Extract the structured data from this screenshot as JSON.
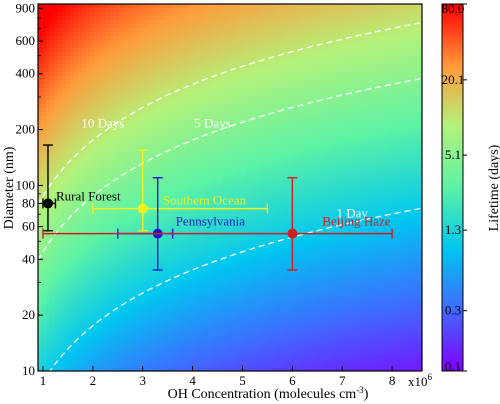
{
  "chart_data": {
    "type": "scatter",
    "title": "",
    "xlabel": "OH Concentration (molecules cm",
    "xlabel_sup": "-3",
    "xlabel_end": ")",
    "ylabel": "Diameter (nm)",
    "x_multiplier_label": "x10",
    "x_multiplier_exp": "6",
    "xlim": [
      0.9,
      8.6
    ],
    "ylim": [
      10,
      950
    ],
    "y_scale": "log",
    "x_ticks": [
      1,
      2,
      3,
      4,
      5,
      6,
      7,
      8
    ],
    "x_tick_labels": [
      "1",
      "2",
      "3",
      "4",
      "5",
      "6",
      "7",
      "8"
    ],
    "y_ticks": [
      10,
      20,
      40,
      60,
      80,
      100,
      200,
      400,
      600,
      900
    ],
    "y_tick_labels": [
      "10",
      "20",
      "40",
      "60",
      "80",
      "100",
      "200",
      "400",
      "600",
      "900"
    ],
    "colorbar": {
      "label": "Lifetime (days)",
      "scale": "log",
      "range": [
        0.1,
        80.0
      ],
      "tick_labels": [
        "80.0",
        "20.1",
        "5.1",
        "1.3",
        "0.3",
        "0.1"
      ],
      "tick_values": [
        80.0,
        20.1,
        5.1,
        1.3,
        0.3,
        0.1
      ],
      "colormap": "rainbow"
    },
    "contours": [
      {
        "label": "10 Days",
        "days": 10
      },
      {
        "label": "5 Days",
        "days": 5
      },
      {
        "label": "1 Day",
        "days": 1
      }
    ],
    "series": [
      {
        "name": "Rural Forest",
        "x": 1.1,
        "y": 80,
        "xerr": [
          1.0,
          1.25
        ],
        "yerr": [
          57,
          165
        ],
        "color": "#000000"
      },
      {
        "name": "Southern Ocean",
        "x": 3.0,
        "y": 75,
        "xerr": [
          2.0,
          5.5
        ],
        "yerr": [
          57,
          155
        ],
        "color": "#f2f21a"
      },
      {
        "name": "Pennsylvania",
        "x": 3.3,
        "y": 55,
        "xerr": [
          2.5,
          3.6
        ],
        "yerr": [
          35,
          110
        ],
        "color": "#1a1acc"
      },
      {
        "name": "Beijing Haze",
        "x": 6.0,
        "y": 55,
        "xerr": [
          1.0,
          8.0
        ],
        "yerr": [
          35,
          110
        ],
        "color": "#cc2020"
      }
    ]
  }
}
